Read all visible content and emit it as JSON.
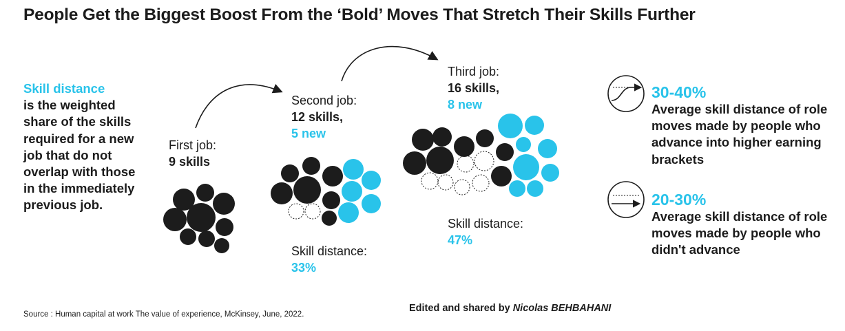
{
  "title": "People Get the Biggest Boost From the ‘Bold’ Moves That Stretch Their Skills Further",
  "definition": {
    "term": "Skill distance",
    "text": "is the weighted share of the skills required for a new job that do not overlap with those in the immediately previous job."
  },
  "jobs": [
    {
      "heading": "First job:",
      "skills_text": "9 skills",
      "new_text": "",
      "total_skills": 9,
      "new_skills": 0,
      "distance_label": "",
      "distance_value": ""
    },
    {
      "heading": "Second job:",
      "skills_text": "12 skills,",
      "new_text": "5 new",
      "total_skills": 12,
      "new_skills": 5,
      "distance_label": "Skill distance:",
      "distance_value": "33%"
    },
    {
      "heading": "Third job:",
      "skills_text": "16 skills,",
      "new_text": "8 new",
      "total_skills": 16,
      "new_skills": 8,
      "distance_label": "Skill distance:",
      "distance_value": "47%"
    }
  ],
  "stats": [
    {
      "icon": "s-curve-arrow-icon",
      "value": "30-40%",
      "text": "Average skill distance of role moves made by people who advance into higher earning brackets"
    },
    {
      "icon": "flat-arrow-icon",
      "value": "20-30%",
      "text": "Average skill distance of role moves made by people who didn't advance"
    }
  ],
  "source": "Source : Human capital at work The value of experience, McKinsey, June, 2022.",
  "edited_prefix": "Edited and shared by",
  "edited_author": "Nicolas BEHBAHANI",
  "colors": {
    "known_skill": "#1c1c1c",
    "new_skill": "#29c3ea",
    "accent": "#29c3ea",
    "dropped_skill_outline": "#1c1c1c"
  }
}
